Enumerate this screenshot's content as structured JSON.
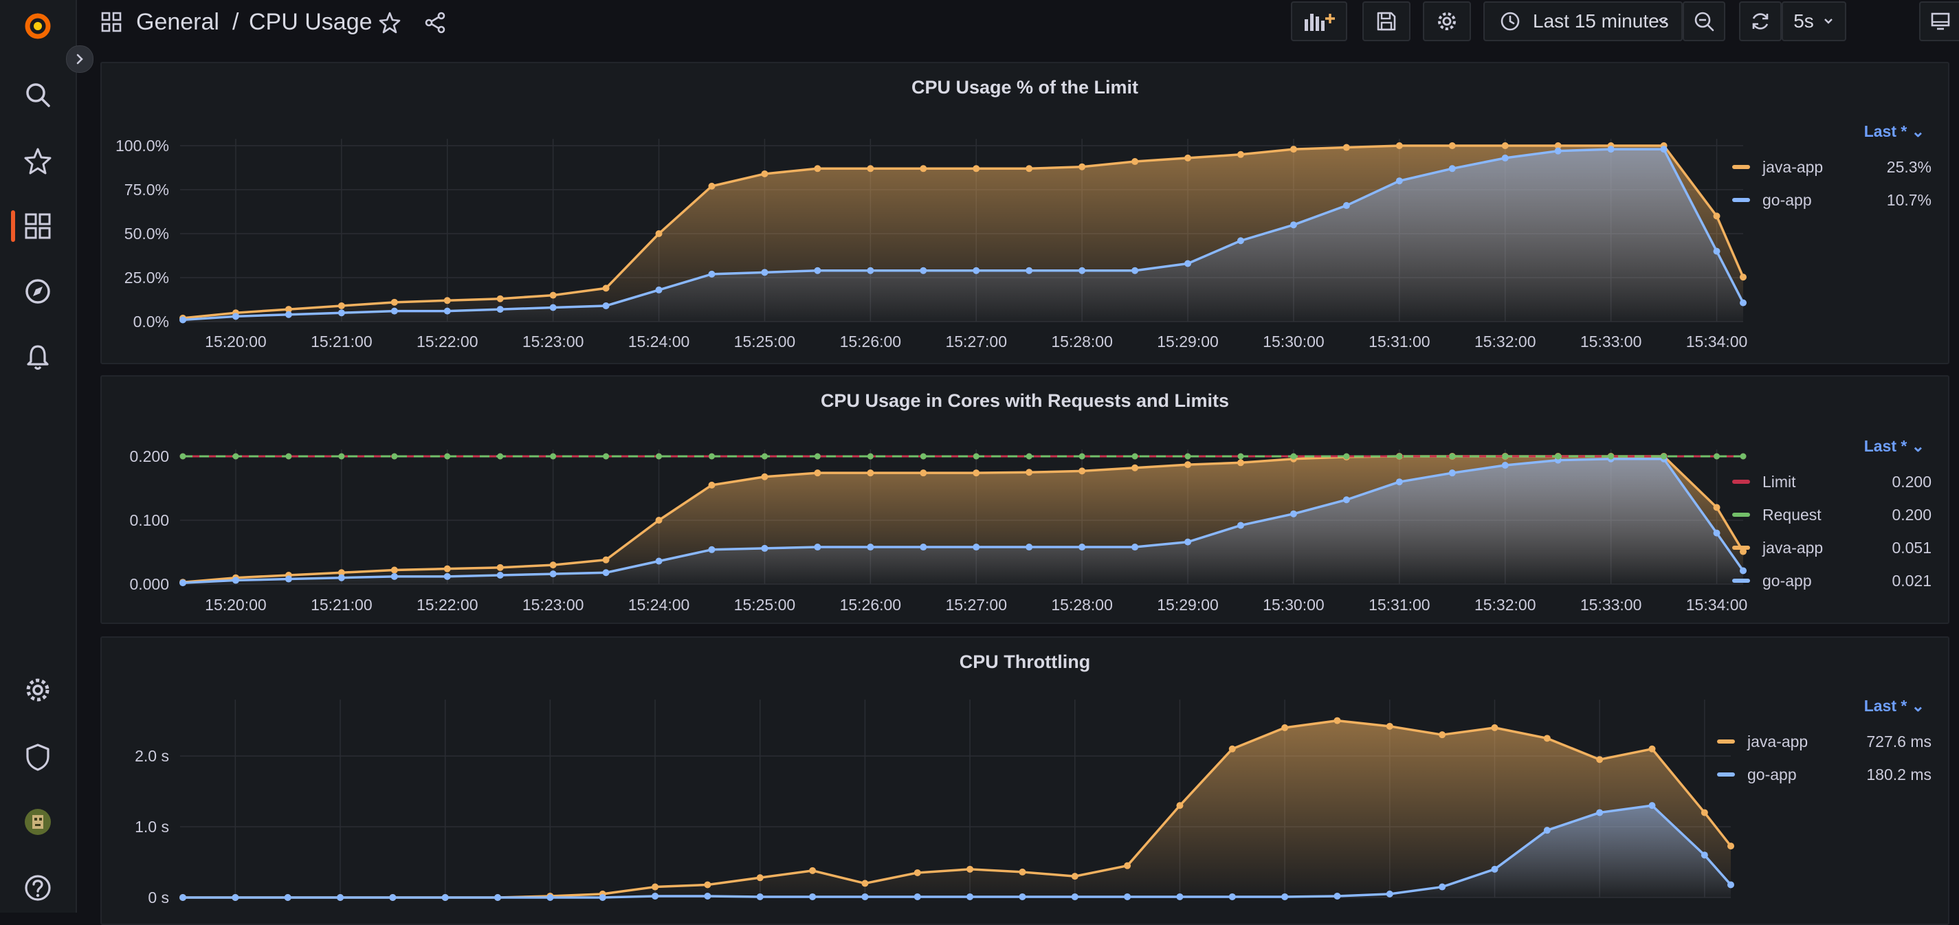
{
  "breadcrumb": {
    "folder": "General",
    "separator": "/",
    "dashboard": "CPU Usage"
  },
  "toolbar": {
    "time_range": "Last 15 minutes",
    "refresh_interval": "5s"
  },
  "sidebar": {
    "icons": [
      "grafana-logo-icon",
      "search-icon",
      "star-icon",
      "dashboards-icon",
      "explore-icon",
      "alerting-icon",
      "configuration-icon",
      "shield-icon",
      "user-avatar",
      "help-icon"
    ]
  },
  "colors": {
    "java": "#f2b15f",
    "go": "#8ab8ff",
    "limit": "#c4314b",
    "request": "#73bf69",
    "accent": "#6e9fff"
  },
  "panels": [
    {
      "title": "CPU Usage % of the Limit",
      "legend_header": "Last *",
      "legend": [
        {
          "name": "java-app",
          "value": "25.3%",
          "color": "#f2b15f"
        },
        {
          "name": "go-app",
          "value": "10.7%",
          "color": "#8ab8ff"
        }
      ]
    },
    {
      "title": "CPU Usage in Cores with Requests and Limits",
      "legend_header": "Last *",
      "legend": [
        {
          "name": "Limit",
          "value": "0.200",
          "color": "#c4314b"
        },
        {
          "name": "Request",
          "value": "0.200",
          "color": "#73bf69"
        },
        {
          "name": "java-app",
          "value": "0.051",
          "color": "#f2b15f"
        },
        {
          "name": "go-app",
          "value": "0.021",
          "color": "#8ab8ff"
        }
      ]
    },
    {
      "title": "CPU Throttling",
      "legend_header": "Last *",
      "legend": [
        {
          "name": "java-app",
          "value": "727.6 ms",
          "color": "#f2b15f"
        },
        {
          "name": "go-app",
          "value": "180.2 ms",
          "color": "#8ab8ff"
        }
      ]
    }
  ],
  "chart_data": [
    {
      "type": "area",
      "title": "CPU Usage % of the Limit",
      "x_ticks": [
        "15:20:00",
        "15:21:00",
        "15:22:00",
        "15:23:00",
        "15:24:00",
        "15:25:00",
        "15:26:00",
        "15:27:00",
        "15:28:00",
        "15:29:00",
        "15:30:00",
        "15:31:00",
        "15:32:00",
        "15:33:00",
        "15:34:00"
      ],
      "x": [
        "15:19:30",
        "15:20:00",
        "15:20:30",
        "15:21:00",
        "15:21:30",
        "15:22:00",
        "15:22:30",
        "15:23:00",
        "15:23:30",
        "15:24:00",
        "15:24:30",
        "15:25:00",
        "15:25:30",
        "15:26:00",
        "15:26:30",
        "15:27:00",
        "15:27:30",
        "15:28:00",
        "15:28:30",
        "15:29:00",
        "15:29:30",
        "15:30:00",
        "15:30:30",
        "15:31:00",
        "15:31:30",
        "15:32:00",
        "15:32:30",
        "15:33:00",
        "15:33:30",
        "15:34:00",
        "15:34:15"
      ],
      "y_ticks": [
        "0.0%",
        "25.0%",
        "50.0%",
        "75.0%",
        "100.0%"
      ],
      "ylim": [
        0,
        100
      ],
      "series": [
        {
          "name": "java-app",
          "values": [
            2,
            5,
            7,
            9,
            11,
            12,
            13,
            15,
            19,
            50,
            77,
            84,
            87,
            87,
            87,
            87,
            87,
            88,
            91,
            93,
            95,
            98,
            99,
            100,
            100,
            100,
            100,
            100,
            100,
            60,
            25.3
          ]
        },
        {
          "name": "go-app",
          "values": [
            1,
            3,
            4,
            5,
            6,
            6,
            7,
            8,
            9,
            18,
            27,
            28,
            29,
            29,
            29,
            29,
            29,
            29,
            29,
            33,
            46,
            55,
            66,
            80,
            87,
            93,
            97,
            98,
            98,
            40,
            10.7
          ]
        }
      ]
    },
    {
      "type": "area",
      "title": "CPU Usage in Cores with Requests and Limits",
      "x_ticks": [
        "15:20:00",
        "15:21:00",
        "15:22:00",
        "15:23:00",
        "15:24:00",
        "15:25:00",
        "15:26:00",
        "15:27:00",
        "15:28:00",
        "15:29:00",
        "15:30:00",
        "15:31:00",
        "15:32:00",
        "15:33:00",
        "15:34:00"
      ],
      "x": [
        "15:19:30",
        "15:20:00",
        "15:20:30",
        "15:21:00",
        "15:21:30",
        "15:22:00",
        "15:22:30",
        "15:23:00",
        "15:23:30",
        "15:24:00",
        "15:24:30",
        "15:25:00",
        "15:25:30",
        "15:26:00",
        "15:26:30",
        "15:27:00",
        "15:27:30",
        "15:28:00",
        "15:28:30",
        "15:29:00",
        "15:29:30",
        "15:30:00",
        "15:30:30",
        "15:31:00",
        "15:31:30",
        "15:32:00",
        "15:32:30",
        "15:33:00",
        "15:33:30",
        "15:34:00",
        "15:34:15"
      ],
      "y_ticks": [
        "0.000",
        "0.100",
        "0.200"
      ],
      "ylim": [
        0,
        0.2
      ],
      "series": [
        {
          "name": "Limit",
          "values": [
            0.2,
            0.2,
            0.2,
            0.2,
            0.2,
            0.2,
            0.2,
            0.2,
            0.2,
            0.2,
            0.2,
            0.2,
            0.2,
            0.2,
            0.2,
            0.2,
            0.2,
            0.2,
            0.2,
            0.2,
            0.2,
            0.2,
            0.2,
            0.2,
            0.2,
            0.2,
            0.2,
            0.2,
            0.2,
            0.2,
            0.2
          ]
        },
        {
          "name": "Request",
          "values": [
            0.2,
            0.2,
            0.2,
            0.2,
            0.2,
            0.2,
            0.2,
            0.2,
            0.2,
            0.2,
            0.2,
            0.2,
            0.2,
            0.2,
            0.2,
            0.2,
            0.2,
            0.2,
            0.2,
            0.2,
            0.2,
            0.2,
            0.2,
            0.2,
            0.2,
            0.2,
            0.2,
            0.2,
            0.2,
            0.2,
            0.2
          ]
        },
        {
          "name": "java-app",
          "values": [
            0.003,
            0.01,
            0.014,
            0.018,
            0.022,
            0.024,
            0.026,
            0.03,
            0.038,
            0.1,
            0.155,
            0.168,
            0.174,
            0.174,
            0.174,
            0.174,
            0.175,
            0.177,
            0.182,
            0.187,
            0.19,
            0.196,
            0.199,
            0.2,
            0.2,
            0.2,
            0.2,
            0.2,
            0.2,
            0.12,
            0.051
          ]
        },
        {
          "name": "go-app",
          "values": [
            0.002,
            0.006,
            0.008,
            0.01,
            0.012,
            0.012,
            0.014,
            0.016,
            0.018,
            0.036,
            0.054,
            0.056,
            0.058,
            0.058,
            0.058,
            0.058,
            0.058,
            0.058,
            0.058,
            0.066,
            0.092,
            0.11,
            0.132,
            0.16,
            0.174,
            0.186,
            0.194,
            0.196,
            0.196,
            0.08,
            0.021
          ]
        }
      ]
    },
    {
      "type": "area",
      "title": "CPU Throttling",
      "x": [
        "15:19:30",
        "15:20:00",
        "15:20:30",
        "15:21:00",
        "15:21:30",
        "15:22:00",
        "15:22:30",
        "15:23:00",
        "15:23:30",
        "15:24:00",
        "15:24:30",
        "15:25:00",
        "15:25:30",
        "15:26:00",
        "15:26:30",
        "15:27:00",
        "15:27:30",
        "15:28:00",
        "15:28:30",
        "15:29:00",
        "15:29:30",
        "15:30:00",
        "15:30:30",
        "15:31:00",
        "15:31:30",
        "15:32:00",
        "15:32:30",
        "15:33:00",
        "15:33:30",
        "15:34:00",
        "15:34:15"
      ],
      "y_ticks": [
        "0 s",
        "1.0 s",
        "2.0 s"
      ],
      "ylim": [
        0,
        2.7
      ],
      "series": [
        {
          "name": "java-app",
          "values": [
            0,
            0,
            0,
            0,
            0,
            0,
            0,
            0.02,
            0.05,
            0.15,
            0.18,
            0.28,
            0.38,
            0.2,
            0.35,
            0.4,
            0.36,
            0.3,
            0.45,
            1.3,
            2.1,
            2.4,
            2.5,
            2.42,
            2.3,
            2.4,
            2.25,
            1.95,
            2.1,
            1.2,
            0.7276
          ]
        },
        {
          "name": "go-app",
          "values": [
            0,
            0,
            0,
            0,
            0,
            0,
            0,
            0,
            0,
            0.02,
            0.02,
            0.01,
            0.01,
            0.01,
            0.01,
            0.01,
            0.01,
            0.01,
            0.01,
            0.01,
            0.01,
            0.01,
            0.02,
            0.05,
            0.15,
            0.4,
            0.95,
            1.2,
            1.3,
            0.6,
            0.1802
          ]
        }
      ]
    }
  ]
}
